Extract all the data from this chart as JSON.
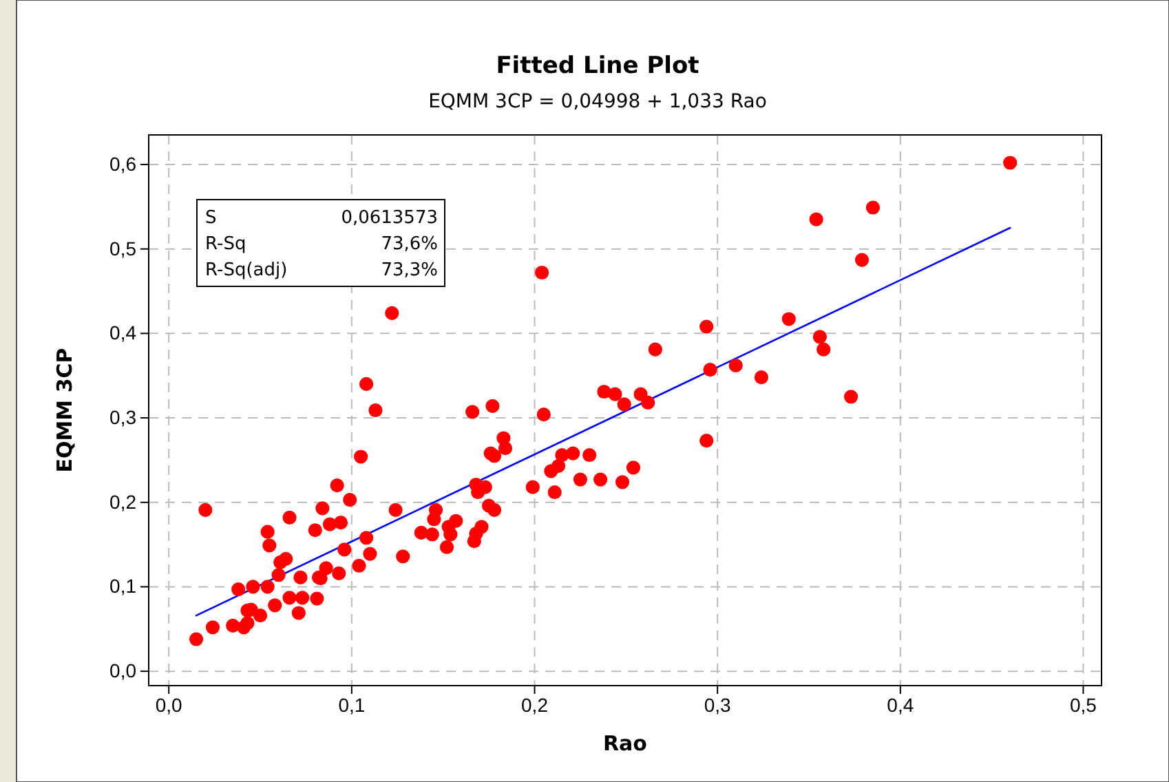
{
  "chart_data": {
    "type": "scatter",
    "title": "Fitted Line Plot",
    "subtitle": "EQMM 3CP =  0,04998 + 1,033 Rao",
    "xlabel": "Rao",
    "ylabel": "EQMM 3CP",
    "annotations": [
      "S",
      "0,0613573",
      "R-Sq",
      "73,6%",
      "R-Sq(adj)",
      "73,3%"
    ],
    "xlim": [
      -0.011,
      0.51
    ],
    "ylim": [
      -0.017,
      0.635
    ],
    "xticks": [
      {
        "value": 0,
        "label": "0,0"
      },
      {
        "value": 0.1,
        "label": "0,1"
      },
      {
        "value": 0.2,
        "label": "0,2"
      },
      {
        "value": 0.3,
        "label": "0,3"
      },
      {
        "value": 0.4,
        "label": "0,4"
      },
      {
        "value": 0.5,
        "label": "0,5"
      }
    ],
    "yticks": [
      {
        "value": 0,
        "label": "0,0"
      },
      {
        "value": 0.1,
        "label": "0,1"
      },
      {
        "value": 0.2,
        "label": "0,2"
      },
      {
        "value": 0.3,
        "label": "0,3"
      },
      {
        "value": 0.4,
        "label": "0,4"
      },
      {
        "value": 0.5,
        "label": "0,5"
      },
      {
        "value": 0.6,
        "label": "0,6"
      }
    ],
    "grid": true,
    "series": [
      {
        "marker": "circle",
        "color": "#ff0000",
        "x": [
          0.015,
          0.02,
          0.024,
          0.035,
          0.041,
          0.043,
          0.043,
          0.045,
          0.05,
          0.038,
          0.046,
          0.054,
          0.058,
          0.054,
          0.055,
          0.061,
          0.064,
          0.06,
          0.066,
          0.066,
          0.071,
          0.072,
          0.073,
          0.08,
          0.081,
          0.082,
          0.083,
          0.086,
          0.084,
          0.088,
          0.094,
          0.092,
          0.099,
          0.093,
          0.096,
          0.104,
          0.105,
          0.108,
          0.11,
          0.113,
          0.108,
          0.124,
          0.128,
          0.122,
          0.204,
          0.266,
          0.238,
          0.244,
          0.249,
          0.258,
          0.262,
          0.166,
          0.177,
          0.205,
          0.183,
          0.176,
          0.184,
          0.178,
          0.221,
          0.23,
          0.215,
          0.213,
          0.209,
          0.199,
          0.211,
          0.225,
          0.236,
          0.248,
          0.254,
          0.168,
          0.173,
          0.169,
          0.175,
          0.178,
          0.146,
          0.145,
          0.157,
          0.153,
          0.138,
          0.144,
          0.154,
          0.171,
          0.168,
          0.167,
          0.152,
          0.46,
          0.354,
          0.385,
          0.379,
          0.294,
          0.339,
          0.356,
          0.358,
          0.296,
          0.31,
          0.324,
          0.373,
          0.294
        ],
        "values": [
          0.038,
          0.191,
          0.052,
          0.054,
          0.052,
          0.057,
          0.072,
          0.073,
          0.066,
          0.097,
          0.1,
          0.1,
          0.078,
          0.165,
          0.149,
          0.129,
          0.133,
          0.114,
          0.182,
          0.087,
          0.069,
          0.111,
          0.087,
          0.167,
          0.086,
          0.111,
          0.11,
          0.122,
          0.193,
          0.174,
          0.176,
          0.22,
          0.203,
          0.116,
          0.144,
          0.125,
          0.254,
          0.158,
          0.139,
          0.309,
          0.34,
          0.191,
          0.136,
          0.424,
          0.472,
          0.381,
          0.331,
          0.328,
          0.316,
          0.328,
          0.318,
          0.307,
          0.314,
          0.304,
          0.276,
          0.258,
          0.264,
          0.255,
          0.258,
          0.256,
          0.256,
          0.243,
          0.237,
          0.218,
          0.212,
          0.227,
          0.227,
          0.224,
          0.241,
          0.221,
          0.218,
          0.212,
          0.196,
          0.191,
          0.191,
          0.18,
          0.178,
          0.171,
          0.164,
          0.162,
          0.162,
          0.171,
          0.163,
          0.154,
          0.147,
          0.602,
          0.535,
          0.549,
          0.487,
          0.408,
          0.417,
          0.396,
          0.381,
          0.357,
          0.362,
          0.348,
          0.325,
          0.273
        ]
      },
      {
        "type": "line",
        "color": "#0000ff",
        "x": [
          0.015,
          0.46
        ],
        "values": [
          0.066,
          0.525
        ]
      }
    ]
  }
}
